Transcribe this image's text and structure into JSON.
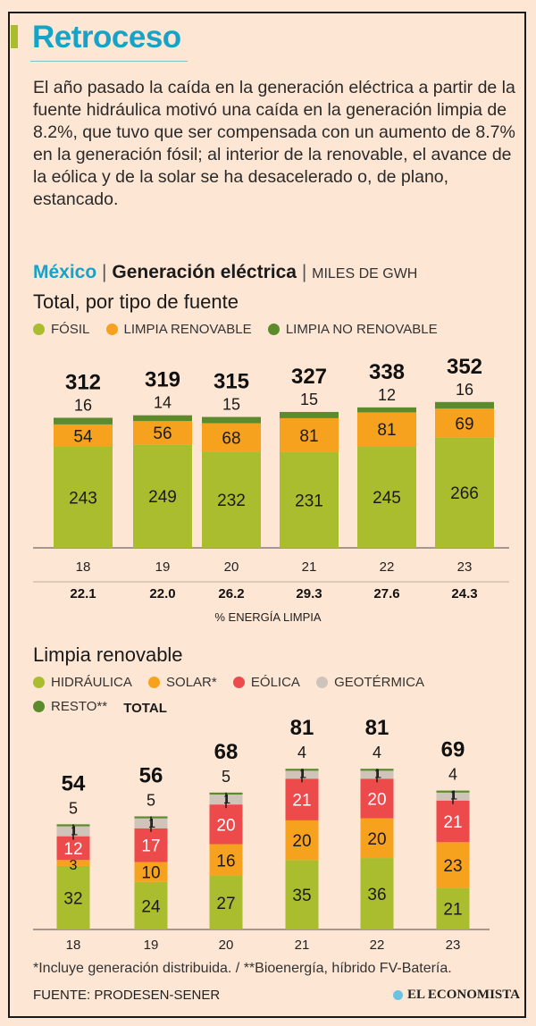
{
  "title": "Retroceso",
  "intro": "El año pasado la caída en la generación eléctrica a partir de la fuente hidráulica motivó una caída en la generación limpia de 8.2%, que tuvo que ser compensada con un aumento de 8.7% en la generación fósil; al interior de la renovable, el avance de la eólica y de la solar se ha desacelerado o, de plano, estancado.",
  "header": {
    "country": "México",
    "sep": "|",
    "topic": "Generación eléctrica",
    "unit": "MILES DE GWH"
  },
  "colors": {
    "fosil": "#a9bd2e",
    "renovable": "#f6a21e",
    "no_renovable": "#5b8b2c",
    "hidraulica": "#a9bd2e",
    "solar": "#f6a21e",
    "eolica": "#ec4a4b",
    "geotermica": "#cfc4ba",
    "resto": "#5b8b2c",
    "title": "#17a2c8"
  },
  "chart_data": [
    {
      "type": "bar",
      "stacked": true,
      "title": "Total, por tipo de fuente",
      "categories": [
        "18",
        "19",
        "20",
        "21",
        "22",
        "23"
      ],
      "series": [
        {
          "name": "FÓSIL",
          "values": [
            243,
            249,
            232,
            231,
            245,
            266
          ]
        },
        {
          "name": "LIMPIA RENOVABLE",
          "values": [
            54,
            56,
            68,
            81,
            81,
            69
          ]
        },
        {
          "name": "LIMPIA NO RENOVABLE",
          "values": [
            16,
            14,
            15,
            15,
            12,
            16
          ]
        }
      ],
      "totals": [
        312,
        319,
        315,
        327,
        338,
        352
      ],
      "clean_share_label": "% ENERGÍA LIMPIA",
      "clean_share": [
        "22.1",
        "22.0",
        "26.2",
        "29.3",
        "27.6",
        "24.3"
      ],
      "legend": "top-left"
    },
    {
      "type": "bar",
      "stacked": true,
      "title": "Limpia renovable",
      "categories": [
        "18",
        "19",
        "20",
        "21",
        "22",
        "23"
      ],
      "series": [
        {
          "name": "HIDRÁULICA",
          "values": [
            32,
            24,
            27,
            35,
            36,
            21
          ]
        },
        {
          "name": "SOLAR*",
          "values": [
            3,
            10,
            16,
            20,
            20,
            23
          ]
        },
        {
          "name": "EÓLICA",
          "values": [
            12,
            17,
            20,
            21,
            20,
            21
          ]
        },
        {
          "name": "GEOTÉRMICA",
          "values": [
            5,
            5,
            5,
            4,
            4,
            4
          ]
        },
        {
          "name": "RESTO**",
          "values": [
            1,
            1,
            1,
            1,
            1,
            1
          ]
        }
      ],
      "totals_label": "TOTAL",
      "totals": [
        54,
        56,
        68,
        81,
        81,
        69
      ],
      "legend": "top-left"
    }
  ],
  "footnote": "*Incluye generación distribuida. / **Bioenergía, híbrido FV-Batería.",
  "source": "FUENTE: PRODESEN-SENER",
  "logo": "EL ECONOMISTA"
}
